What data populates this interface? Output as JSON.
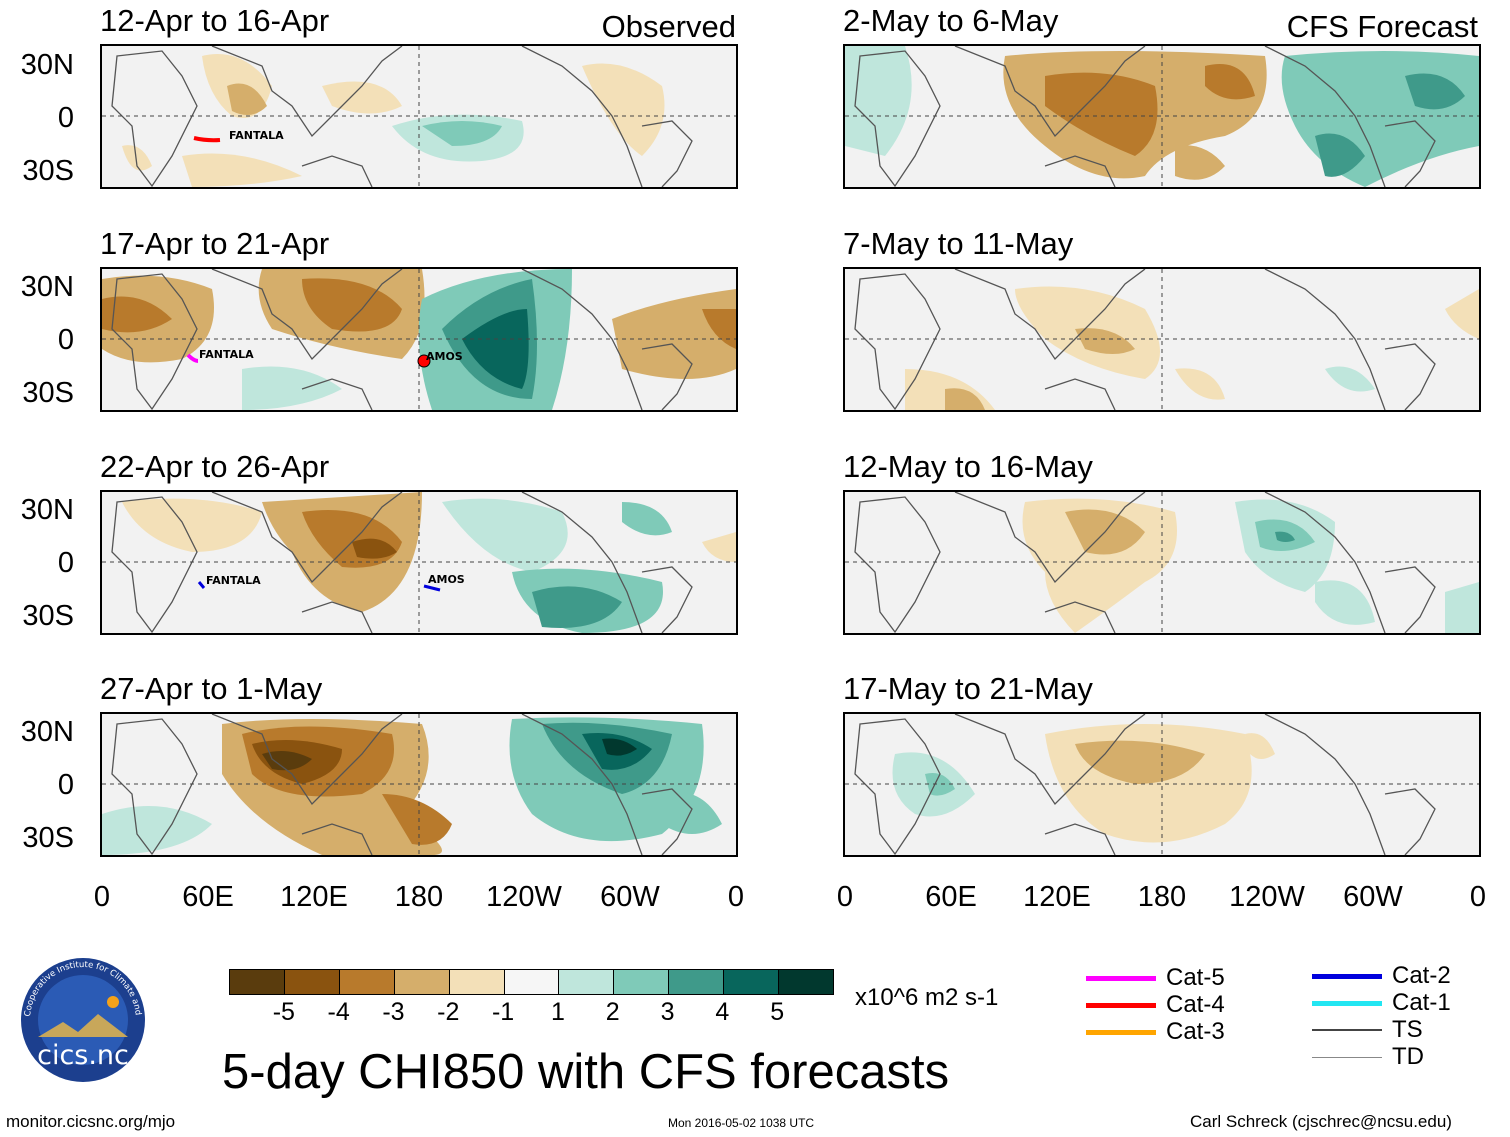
{
  "observed_label": "Observed",
  "forecast_label": "CFS Forecast",
  "panels_left": [
    {
      "title": "12-Apr to 16-Apr"
    },
    {
      "title": "17-Apr to 21-Apr"
    },
    {
      "title": "22-Apr to 26-Apr"
    },
    {
      "title": "27-Apr to 1-May"
    }
  ],
  "panels_right": [
    {
      "title": "2-May to 6-May"
    },
    {
      "title": "7-May to 11-May"
    },
    {
      "title": "12-May to 16-May"
    },
    {
      "title": "17-May to 21-May"
    }
  ],
  "lat_labels": [
    "30N",
    "0",
    "30S"
  ],
  "lon_labels": [
    "0",
    "60E",
    "120E",
    "180",
    "120W",
    "60W",
    "0"
  ],
  "storms": {
    "p1": "FANTALA",
    "p2a": "FANTALA",
    "p2b": "AMOS",
    "p3a": "FANTALA",
    "p3b": "AMOS"
  },
  "colorbar": {
    "ticks": [
      "-5",
      "-4",
      "-3",
      "-2",
      "-1",
      "1",
      "2",
      "3",
      "4",
      "5"
    ],
    "colors": [
      "#5a3c0d",
      "#8a530f",
      "#b87a2c",
      "#d5ae6b",
      "#f3e0b8",
      "#f6f6f6",
      "#bfe6dc",
      "#7fcab8",
      "#3f9a8a",
      "#08665c",
      "#01382e"
    ],
    "units": "x10^6 m2 s-1"
  },
  "legend_left": [
    {
      "label": "Cat-5",
      "color": "#ff00ff"
    },
    {
      "label": "Cat-4",
      "color": "#ff0000"
    },
    {
      "label": "Cat-3",
      "color": "#ffa500"
    }
  ],
  "legend_right": [
    {
      "label": "Cat-2",
      "color": "#0000dd"
    },
    {
      "label": "Cat-1",
      "color": "#22e6f2"
    },
    {
      "label": "TS",
      "color": "#444444"
    },
    {
      "label": "TD",
      "color": "#888888"
    }
  ],
  "main_title": "5-day CHI850 with CFS forecasts",
  "footer": {
    "left": "monitor.cicsnc.org/mjo",
    "center": "Mon 2016-05-02 1038 UTC",
    "right": "Carl Schreck (cjschrec@ncsu.edu)"
  },
  "logo": {
    "text": "cics.nc",
    "ring_text": "Cooperative Institute for Climate and Satellites"
  }
}
